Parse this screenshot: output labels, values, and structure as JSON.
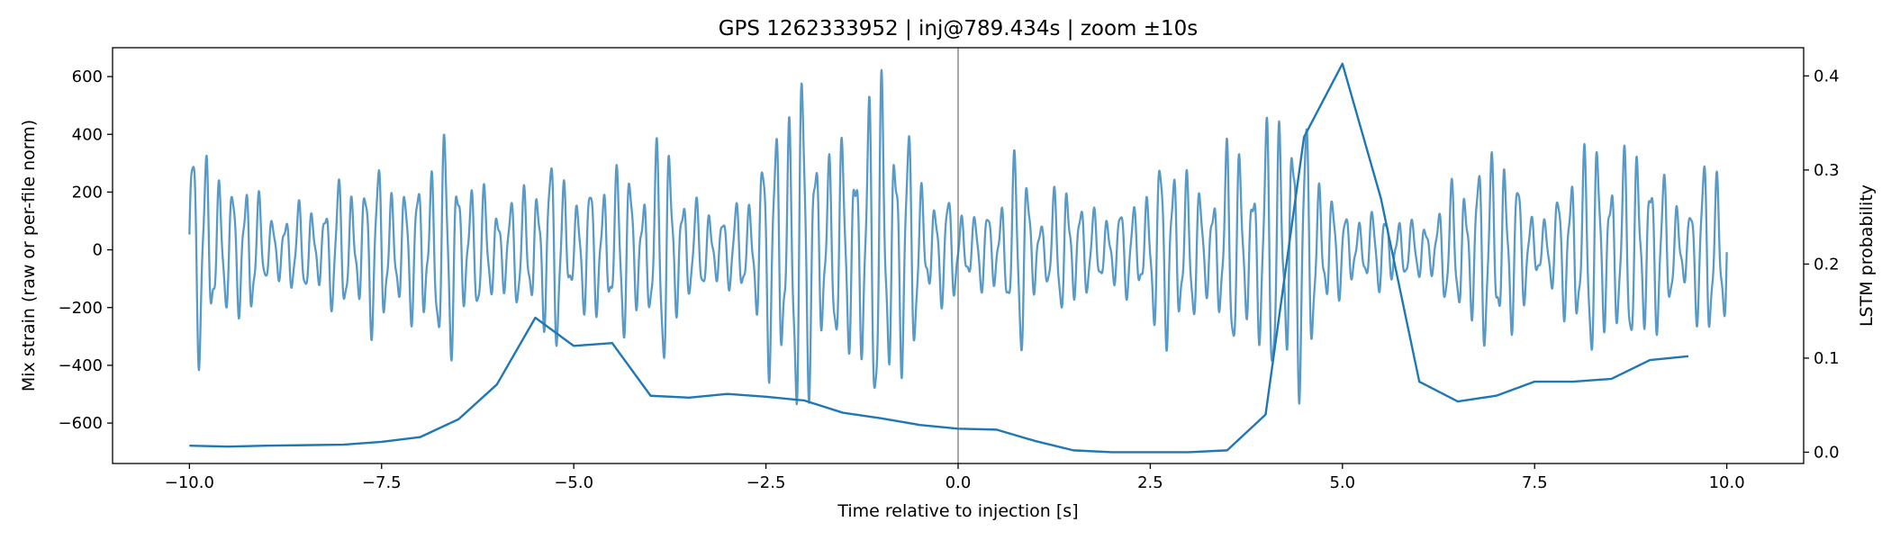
{
  "chart_data": {
    "type": "line",
    "title": "GPS 1262333952 | inj@789.434s | zoom ±10s",
    "xlabel": "Time relative to injection [s]",
    "ylabel_left": "Mix strain (raw or per-file norm)",
    "ylabel_right": "LSTM probability",
    "xlim": [
      -11.0,
      11.0
    ],
    "ylim_left": [
      -740,
      700
    ],
    "ylim_right": [
      -0.012,
      0.43
    ],
    "x_ticks": [
      -10.0,
      -7.5,
      -5.0,
      -2.5,
      0.0,
      2.5,
      5.0,
      7.5,
      10.0
    ],
    "x_tick_labels": [
      "−10.0",
      "−7.5",
      "−5.0",
      "−2.5",
      "0.0",
      "2.5",
      "5.0",
      "7.5",
      "10.0"
    ],
    "y_left_ticks": [
      600,
      400,
      200,
      0,
      -200,
      -400,
      -600
    ],
    "y_left_tick_labels": [
      "600",
      "400",
      "200",
      "0",
      "−200",
      "−400",
      "−600"
    ],
    "y_right_ticks": [
      0.4,
      0.3,
      0.2,
      0.1,
      0.0
    ],
    "y_right_tick_labels": [
      "0.4",
      "0.3",
      "0.2",
      "0.1",
      "0.0"
    ],
    "vline_x": 0.0,
    "colors": {
      "line": "#1f77b4",
      "vline": "#aaaaaa",
      "axes": "#000000"
    },
    "series": [
      {
        "name": "Mix strain",
        "axis": "left",
        "sampling": {
          "t_start": -10.0,
          "t_end": 10.0,
          "base_freq_hz": 5.8
        },
        "envelope": {
          "t": [
            -10.0,
            -9.8,
            -9.5,
            -9.2,
            -9.0,
            -8.7,
            -8.4,
            -8.1,
            -7.8,
            -7.5,
            -7.2,
            -6.9,
            -6.6,
            -6.4,
            -6.1,
            -5.8,
            -5.5,
            -5.2,
            -5.0,
            -4.7,
            -4.4,
            -4.1,
            -3.8,
            -3.5,
            -3.2,
            -3.0,
            -2.7,
            -2.4,
            -2.1,
            -1.9,
            -1.6,
            -1.3,
            -1.0,
            -0.7,
            -0.4,
            -0.1,
            0.2,
            0.5,
            0.8,
            1.1,
            1.4,
            1.7,
            2.0,
            2.3,
            2.6,
            2.9,
            3.2,
            3.5,
            3.8,
            4.1,
            4.4,
            4.7,
            5.0,
            5.3,
            5.6,
            5.9,
            6.2,
            6.5,
            6.8,
            7.1,
            7.4,
            7.7,
            8.0,
            8.3,
            8.6,
            8.9,
            9.2,
            9.5,
            9.8,
            10.0
          ],
          "amp": [
            330,
            420,
            180,
            310,
            90,
            160,
            140,
            220,
            230,
            300,
            190,
            320,
            380,
            240,
            190,
            170,
            260,
            330,
            180,
            240,
            300,
            220,
            420,
            160,
            150,
            120,
            210,
            440,
            620,
            460,
            320,
            450,
            600,
            440,
            190,
            180,
            120,
            150,
            360,
            100,
            270,
            130,
            140,
            160,
            300,
            350,
            150,
            370,
            290,
            470,
            520,
            280,
            130,
            120,
            140,
            90,
            120,
            250,
            300,
            380,
            150,
            110,
            340,
            360,
            300,
            380,
            230,
            140,
            380,
            290
          ]
        }
      },
      {
        "name": "LSTM probability",
        "axis": "right",
        "x": [
          -10.0,
          -9.5,
          -9.0,
          -8.5,
          -8.0,
          -7.5,
          -7.0,
          -6.5,
          -6.0,
          -5.5,
          -5.0,
          -4.5,
          -4.0,
          -3.5,
          -3.0,
          -2.5,
          -2.0,
          -1.5,
          -1.0,
          -0.5,
          0.0,
          0.5,
          1.0,
          1.5,
          2.0,
          2.5,
          3.0,
          3.5,
          4.0,
          4.5,
          5.0,
          5.5,
          6.0,
          6.5,
          7.0,
          7.5,
          8.0,
          8.5,
          9.0,
          9.5
        ],
        "y": [
          0.007,
          0.006,
          0.007,
          0.0075,
          0.008,
          0.011,
          0.016,
          0.035,
          0.072,
          0.143,
          0.113,
          0.116,
          0.06,
          0.058,
          0.062,
          0.059,
          0.055,
          0.042,
          0.036,
          0.029,
          0.025,
          0.024,
          0.012,
          0.002,
          0.0,
          0.0,
          0.0,
          0.002,
          0.04,
          0.335,
          0.413,
          0.27,
          0.075,
          0.054,
          0.06,
          0.075,
          0.075,
          0.078,
          0.098,
          0.102
        ]
      }
    ]
  }
}
